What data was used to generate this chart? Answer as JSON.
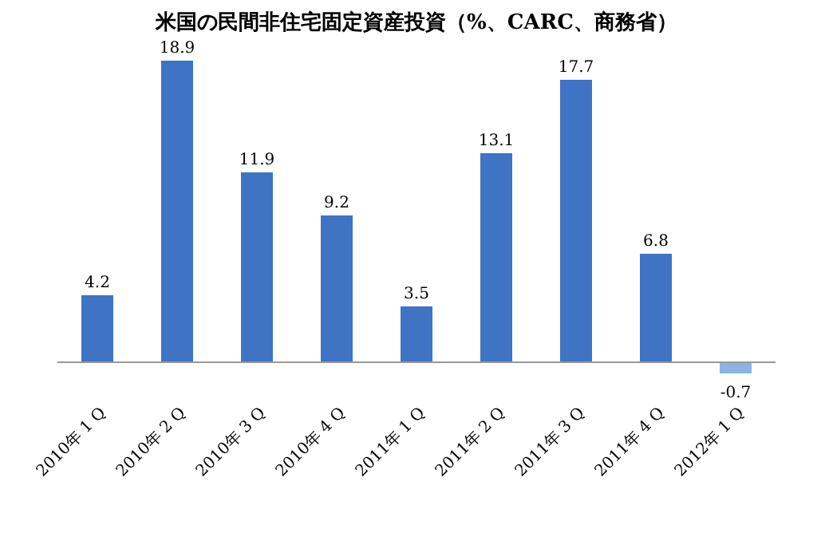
{
  "chart_data": {
    "type": "bar",
    "title": "米国の民間非住宅固定資産投資（%、CARC、商務省）",
    "categories": [
      "2010年 1 Q",
      "2010年 2 Q",
      "2010年 3 Q",
      "2010年 4 Q",
      "2011年 1 Q",
      "2011年 2 Q",
      "2011年 3 Q",
      "2011年 4 Q",
      "2012年 1 Q"
    ],
    "values": [
      4.2,
      18.9,
      11.9,
      9.2,
      3.5,
      13.1,
      17.7,
      6.8,
      -0.7
    ],
    "colors": [
      "#3f74c4",
      "#3f74c4",
      "#3f74c4",
      "#3f74c4",
      "#3f74c4",
      "#3f74c4",
      "#3f74c4",
      "#3f74c4",
      "#8db3e2"
    ],
    "data_labels": true,
    "grid": false
  }
}
